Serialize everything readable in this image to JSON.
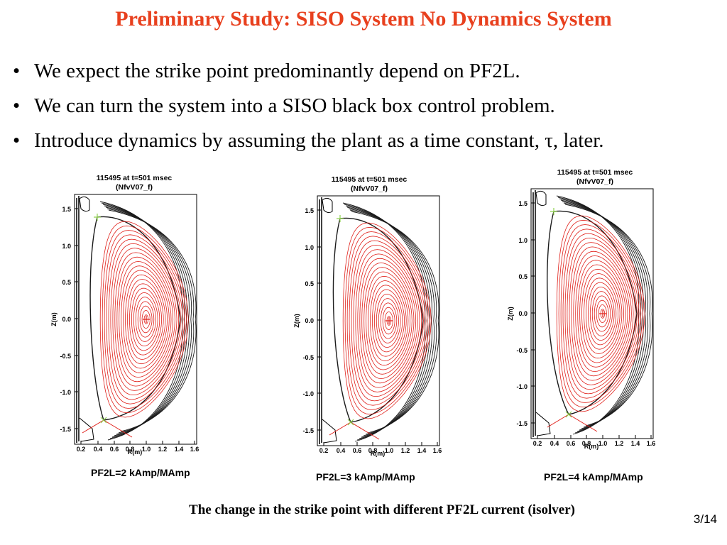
{
  "slide": {
    "title": "Preliminary Study: SISO System No Dynamics System",
    "bullet_char": "•",
    "bullets": [
      "We expect the strike point predominantly depend on PF2L.",
      "We can turn the system into a SISO black box control problem.",
      "Introduce dynamics by assuming the plant as a time constant, τ, later."
    ],
    "figure_caption": "The change in the strike point with different PF2L current (isolver)",
    "page_number": "3/14"
  },
  "colors": {
    "title": "#e8401e",
    "inner_flux_contours": "#e0201a",
    "outer_flux_contours": "#1a1a1a",
    "x_point_marker": "#8fd14f",
    "wall": "#000000"
  },
  "panels": [
    {
      "plot_title_line1": "115495 at t=501 msec",
      "plot_title_line2": "(NfvV07_f)",
      "xlabel": "R(m)",
      "ylabel": "Z(m)",
      "x_ticks": [
        "0.2",
        "0.4",
        "0.6",
        "0.8",
        "1.0",
        "1.2",
        "1.4",
        "1.6"
      ],
      "y_ticks": [
        "1.5",
        "1.0",
        "0.5",
        "0.0",
        "-0.5",
        "-1.0",
        "-1.5"
      ],
      "caption": "PF2L=2 kAmp/MAmp",
      "magnetic_axis": {
        "R": 1.0,
        "Z": 0.0
      },
      "upper_x_point": {
        "R": 0.46,
        "Z": 1.38
      },
      "lower_strike_x_point": {
        "R": 0.54,
        "Z": -1.38
      }
    },
    {
      "plot_title_line1": "115495 at t=501 msec",
      "plot_title_line2": "(NfvV07_f)",
      "xlabel": "R(m)",
      "ylabel": "Z(m)",
      "x_ticks": [
        "0.2",
        "0.4",
        "0.6",
        "0.8",
        "1.0",
        "1.2",
        "1.4",
        "1.6"
      ],
      "y_ticks": [
        "1.5",
        "1.0",
        "0.5",
        "0.0",
        "-0.5",
        "-1.0",
        "-1.5"
      ],
      "caption": "PF2L=3 kAmp/MAmp",
      "magnetic_axis": {
        "R": 1.0,
        "Z": 0.0
      },
      "upper_x_point": {
        "R": 0.45,
        "Z": 1.38
      },
      "lower_strike_x_point": {
        "R": 0.47,
        "Z": -1.38
      }
    },
    {
      "plot_title_line1": "115495 at t=501 msec",
      "plot_title_line2": "(NfvV07_f)",
      "xlabel": "R(m)",
      "ylabel": "Z(m)",
      "x_ticks": [
        "0.2",
        "0.4",
        "0.6",
        "0.8",
        "1.0",
        "1.2",
        "1.4",
        "1.6"
      ],
      "y_ticks": [
        "1.5",
        "1.0",
        "0.5",
        "0.0",
        "-0.5",
        "-1.0",
        "-1.5"
      ],
      "caption": "PF2L=4 kAmp/MAmp",
      "magnetic_axis": {
        "R": 1.0,
        "Z": 0.0
      },
      "upper_x_point": {
        "R": 0.45,
        "Z": 1.4
      },
      "lower_strike_x_point": {
        "R": 0.53,
        "Z": -1.38
      }
    }
  ]
}
